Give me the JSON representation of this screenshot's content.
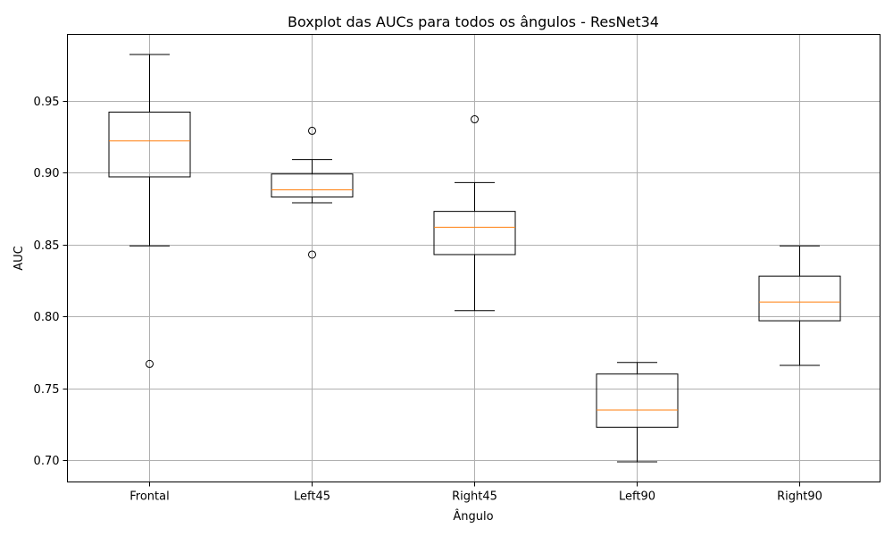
{
  "chart_data": {
    "type": "box",
    "title": "Boxplot das AUCs para todos os ângulos - ResNet34",
    "xlabel": "Ângulo",
    "ylabel": "AUC",
    "ylim": [
      0.685,
      0.996
    ],
    "yticks": [
      0.7,
      0.75,
      0.8,
      0.85,
      0.9,
      0.95
    ],
    "ytick_labels": [
      "0.70",
      "0.75",
      "0.80",
      "0.85",
      "0.90",
      "0.95"
    ],
    "grid": true,
    "categories": [
      "Frontal",
      "Left45",
      "Right45",
      "Left90",
      "Right90"
    ],
    "boxes": [
      {
        "label": "Frontal",
        "whisker_low": 0.849,
        "q1": 0.897,
        "median": 0.922,
        "q3": 0.942,
        "whisker_high": 0.982,
        "outliers": [
          0.767
        ]
      },
      {
        "label": "Left45",
        "whisker_low": 0.879,
        "q1": 0.883,
        "median": 0.888,
        "q3": 0.899,
        "whisker_high": 0.909,
        "outliers": [
          0.929,
          0.843
        ]
      },
      {
        "label": "Right45",
        "whisker_low": 0.804,
        "q1": 0.843,
        "median": 0.862,
        "q3": 0.873,
        "whisker_high": 0.893,
        "outliers": [
          0.937
        ]
      },
      {
        "label": "Left90",
        "whisker_low": 0.699,
        "q1": 0.723,
        "median": 0.735,
        "q3": 0.76,
        "whisker_high": 0.768,
        "outliers": []
      },
      {
        "label": "Right90",
        "whisker_low": 0.766,
        "q1": 0.797,
        "median": 0.81,
        "q3": 0.828,
        "whisker_high": 0.849,
        "outliers": []
      }
    ],
    "colors": {
      "box": "#000000",
      "median": "#ff7f0e",
      "grid": "#b0b0b0"
    }
  }
}
